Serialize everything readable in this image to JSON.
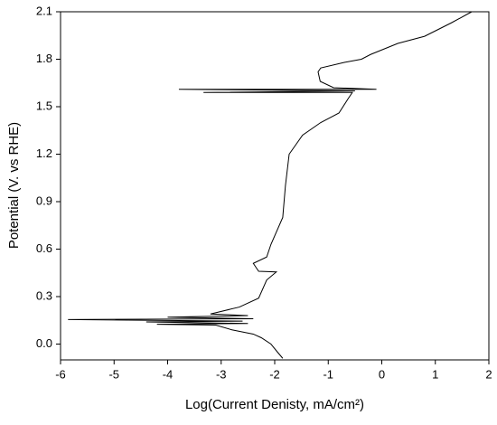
{
  "chart_data": {
    "type": "line",
    "xlabel": "Log(Current Denisty, mA/cm²)",
    "ylabel": "Potential (V. vs RHE)",
    "xlim": [
      -6,
      2
    ],
    "xticks": [
      -6,
      -5,
      -4,
      -3,
      -2,
      -1,
      0,
      1,
      2
    ],
    "ylim": [
      -0.1,
      2.1
    ],
    "yticks": [
      {
        "value": 0,
        "label": "0.0"
      },
      0.3,
      0.6,
      0.9,
      1.2,
      1.5,
      1.8,
      2.1
    ],
    "series": [
      {
        "color": "#000000",
        "x": [
          -1.85,
          -1.95,
          -2.07,
          -2.25,
          -2.4,
          -2.8,
          -3.1,
          -4.2,
          -2.5,
          -4.4,
          -2.6,
          -5.86,
          -2.4,
          -4.0,
          -2.5,
          -3.2,
          -2.66,
          -2.3,
          -2.15,
          -1.97,
          -2.3,
          -2.4,
          -2.15,
          -2.07,
          -1.85,
          -1.8,
          -1.73,
          -1.48,
          -1.14,
          -0.8,
          -0.63,
          -0.55,
          -3.33,
          -0.5,
          -3.79,
          -0.1,
          -0.9,
          -1.15,
          -1.19,
          -1.14,
          -0.7,
          -0.38,
          -0.21,
          0.3,
          0.8,
          1.3,
          1.68
        ],
        "values": [
          -0.09,
          -0.05,
          0.0,
          0.04,
          0.063,
          0.09,
          0.12,
          0.125,
          0.13,
          0.14,
          0.145,
          0.155,
          0.16,
          0.17,
          0.18,
          0.19,
          0.234,
          0.29,
          0.405,
          0.456,
          0.46,
          0.51,
          0.55,
          0.63,
          0.8,
          1.0,
          1.2,
          1.32,
          1.4,
          1.46,
          1.55,
          1.59,
          1.59,
          1.6,
          1.61,
          1.61,
          1.62,
          1.66,
          1.72,
          1.745,
          1.78,
          1.8,
          1.83,
          1.9,
          1.945,
          2.03,
          2.1
        ]
      }
    ]
  }
}
